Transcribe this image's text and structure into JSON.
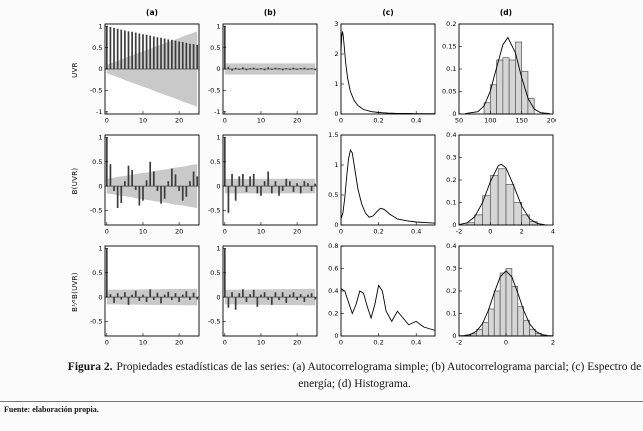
{
  "figure": {
    "column_headers": [
      "(a)",
      "(b)",
      "(c)",
      "(d)"
    ],
    "row_labels": [
      "UVR",
      "B(UVR)",
      "B¹⁄²B(UVR)"
    ],
    "caption": {
      "label": "Figura 2.",
      "text": "Propiedades estadísticas de las series: (a) Autocorrelograma simple; (b) Autocorrelograma parcial; (c) Espectro de energía; (d) Histograma."
    },
    "source": "Fuente: elaboración propia."
  },
  "colors": {
    "band": "#c9c9c9",
    "bar": "#3c3c3c",
    "hist_fill": "#d6d6d6",
    "hist_edge": "#555555",
    "line": "#000000",
    "plot_bg": "#ffffff"
  },
  "chart_data": [
    {
      "id": "uvr-acf",
      "row": 0,
      "col": 0,
      "type": "bars",
      "title": "(a) Autocorrelograma simple - UVR",
      "xlim": [
        -0.5,
        25.5
      ],
      "ylim": [
        -1.05,
        1.05
      ],
      "xticks": [
        0,
        10,
        20
      ],
      "yticks": [
        -1,
        -0.5,
        0,
        0.5,
        1
      ],
      "values": [
        1,
        0.98,
        0.96,
        0.94,
        0.92,
        0.9,
        0.88,
        0.87,
        0.85,
        0.83,
        0.81,
        0.8,
        0.78,
        0.76,
        0.74,
        0.73,
        0.71,
        0.69,
        0.68,
        0.66,
        0.64,
        0.63,
        0.61,
        0.59,
        0.58,
        0.56
      ],
      "band": {
        "x": [
          0,
          1,
          2,
          3,
          4,
          5,
          6,
          7,
          8,
          9,
          10,
          11,
          12,
          13,
          14,
          15,
          16,
          17,
          18,
          19,
          20,
          21,
          22,
          23,
          24,
          25
        ],
        "upper": [
          0.1,
          0.13,
          0.16,
          0.19,
          0.22,
          0.26,
          0.29,
          0.32,
          0.35,
          0.38,
          0.41,
          0.44,
          0.47,
          0.51,
          0.54,
          0.57,
          0.6,
          0.63,
          0.66,
          0.69,
          0.72,
          0.76,
          0.79,
          0.82,
          0.85,
          0.88
        ]
      }
    },
    {
      "id": "uvr-pacf",
      "row": 0,
      "col": 1,
      "type": "bars",
      "title": "(b) Autocorrelograma parcial - UVR",
      "xlim": [
        -0.5,
        25.5
      ],
      "ylim": [
        -1.05,
        1.05
      ],
      "xticks": [
        0,
        10,
        20
      ],
      "yticks": [
        -1,
        -0.5,
        0,
        0.5,
        1
      ],
      "values": [
        1,
        0.05,
        -0.04,
        0.03,
        -0.02,
        0.04,
        -0.03,
        0.02,
        0.03,
        -0.02,
        0.02,
        -0.03,
        0.04,
        -0.02,
        0.03,
        0.02,
        -0.03,
        0.02,
        -0.02,
        0.03,
        -0.02,
        0.02,
        0.03,
        -0.02,
        0.02,
        -0.03
      ],
      "band": {
        "x": [
          0,
          25
        ],
        "upper": [
          0.13,
          0.13
        ]
      }
    },
    {
      "id": "uvr-spectrum",
      "row": 0,
      "col": 2,
      "type": "line",
      "title": "(c) Espectro de energía - UVR",
      "xlim": [
        0,
        0.5
      ],
      "ylim": [
        0,
        3
      ],
      "xticks": [
        0,
        0.2,
        0.4
      ],
      "yticks": [
        0,
        1,
        2,
        3
      ],
      "x": [
        0,
        0.004,
        0.008,
        0.012,
        0.018,
        0.025,
        0.035,
        0.05,
        0.07,
        0.09,
        0.12,
        0.16,
        0.2,
        0.25,
        0.3,
        0.35,
        0.4,
        0.45,
        0.5
      ],
      "y": [
        2.1,
        2.6,
        2.75,
        2.6,
        2.2,
        1.7,
        1.2,
        0.75,
        0.45,
        0.28,
        0.15,
        0.08,
        0.05,
        0.03,
        0.02,
        0.02,
        0.01,
        0.01,
        0.01
      ]
    },
    {
      "id": "uvr-hist",
      "row": 0,
      "col": 3,
      "type": "hist",
      "title": "(d) Histograma - UVR",
      "xlim": [
        50,
        200
      ],
      "ylim": [
        0,
        0.2
      ],
      "xticks": [
        50,
        100,
        150,
        200
      ],
      "yticks": [
        0,
        0.05,
        0.1,
        0.15,
        0.2
      ],
      "bin_width": 10,
      "centers": [
        95,
        105,
        115,
        125,
        135,
        145,
        155,
        165
      ],
      "heights": [
        0.025,
        0.065,
        0.12,
        0.125,
        0.12,
        0.16,
        0.095,
        0.035
      ],
      "curve": {
        "x": [
          60,
          80,
          90,
          100,
          110,
          120,
          128,
          140,
          150,
          160,
          170,
          180,
          195
        ],
        "y": [
          0.001,
          0.005,
          0.018,
          0.051,
          0.103,
          0.154,
          0.17,
          0.136,
          0.081,
          0.035,
          0.011,
          0.003,
          0.001
        ]
      }
    },
    {
      "id": "buvr-acf",
      "row": 1,
      "col": 0,
      "type": "bars",
      "title": "(a) Autocorrelograma simple - B(UVR)",
      "xlim": [
        -0.5,
        25.5
      ],
      "ylim": [
        -0.8,
        1.05
      ],
      "xticks": [
        0,
        10,
        20
      ],
      "yticks": [
        -0.5,
        0,
        0.5,
        1
      ],
      "values": [
        1,
        0.45,
        -0.1,
        -0.45,
        -0.35,
        0.1,
        0.42,
        0.33,
        -0.08,
        -0.4,
        -0.3,
        0.12,
        0.5,
        0.3,
        -0.1,
        -0.36,
        -0.26,
        0.1,
        0.36,
        0.24,
        -0.1,
        -0.3,
        -0.22,
        0.1,
        0.3,
        0.2
      ],
      "band": {
        "x": [
          0,
          1,
          2,
          3,
          4,
          5,
          6,
          7,
          8,
          9,
          10,
          11,
          12,
          13,
          14,
          15,
          16,
          17,
          18,
          19,
          20,
          21,
          22,
          23,
          24,
          25
        ],
        "upper": [
          0.15,
          0.16,
          0.17,
          0.19,
          0.2,
          0.21,
          0.22,
          0.23,
          0.25,
          0.26,
          0.27,
          0.28,
          0.29,
          0.31,
          0.32,
          0.33,
          0.34,
          0.35,
          0.37,
          0.38,
          0.39,
          0.4,
          0.41,
          0.43,
          0.44,
          0.45
        ]
      }
    },
    {
      "id": "buvr-pacf",
      "row": 1,
      "col": 1,
      "type": "bars",
      "title": "(b) Autocorrelograma parcial - B(UVR)",
      "xlim": [
        -0.5,
        25.5
      ],
      "ylim": [
        -0.8,
        1.05
      ],
      "xticks": [
        0,
        10,
        20
      ],
      "yticks": [
        -0.5,
        0,
        0.5,
        1
      ],
      "values": [
        1,
        -0.55,
        0.25,
        -0.3,
        0.2,
        0.25,
        -0.12,
        0.2,
        0.25,
        -0.15,
        -0.2,
        0.1,
        0.3,
        -0.15,
        0.1,
        -0.2,
        -0.1,
        0.15,
        0.1,
        -0.12,
        0.06,
        -0.15,
        0.1,
        0.06,
        -0.1,
        0.05
      ],
      "band": {
        "x": [
          0,
          25
        ],
        "upper": [
          0.15,
          0.15
        ]
      }
    },
    {
      "id": "buvr-spectrum",
      "row": 1,
      "col": 2,
      "type": "line",
      "title": "(c) Espectro de energía - B(UVR)",
      "xlim": [
        0,
        0.5
      ],
      "ylim": [
        0,
        1.5
      ],
      "xticks": [
        0,
        0.2,
        0.4
      ],
      "yticks": [
        0,
        0.5,
        1,
        1.5
      ],
      "x": [
        0,
        0.01,
        0.02,
        0.03,
        0.04,
        0.05,
        0.06,
        0.07,
        0.09,
        0.11,
        0.13,
        0.15,
        0.17,
        0.19,
        0.21,
        0.23,
        0.26,
        0.3,
        0.35,
        0.4,
        0.45,
        0.5
      ],
      "y": [
        0.1,
        0.2,
        0.45,
        0.8,
        1.1,
        1.25,
        1.2,
        1.0,
        0.6,
        0.35,
        0.2,
        0.13,
        0.15,
        0.22,
        0.28,
        0.26,
        0.18,
        0.1,
        0.07,
        0.05,
        0.04,
        0.03
      ]
    },
    {
      "id": "buvr-hist",
      "row": 1,
      "col": 3,
      "type": "hist",
      "title": "(d) Histograma - B(UVR)",
      "xlim": [
        -2,
        4
      ],
      "ylim": [
        0,
        0.4
      ],
      "xticks": [
        -2,
        0,
        2,
        4
      ],
      "yticks": [
        0,
        0.1,
        0.2,
        0.3,
        0.4
      ],
      "bin_width": 0.5,
      "centers": [
        -1.25,
        -0.75,
        -0.25,
        0.25,
        0.75,
        1.25,
        1.75,
        2.25,
        2.75
      ],
      "heights": [
        0.01,
        0.045,
        0.13,
        0.22,
        0.25,
        0.18,
        0.1,
        0.045,
        0.015
      ],
      "curve": {
        "x": [
          -2,
          -1.5,
          -1,
          -0.5,
          0,
          0.5,
          0.7,
          1,
          1.5,
          2,
          2.5,
          3,
          3.5
        ],
        "y": [
          0.002,
          0.009,
          0.036,
          0.099,
          0.192,
          0.263,
          0.27,
          0.254,
          0.173,
          0.084,
          0.028,
          0.007,
          0.001
        ]
      }
    },
    {
      "id": "b12buvr-acf",
      "row": 2,
      "col": 0,
      "type": "bars",
      "title": "(a) Autocorrelograma simple - B1/2B(UVR)",
      "xlim": [
        -0.5,
        25.5
      ],
      "ylim": [
        -0.8,
        1.05
      ],
      "xticks": [
        0,
        10,
        20
      ],
      "yticks": [
        -0.5,
        0,
        0.5,
        1
      ],
      "values": [
        1,
        0.06,
        -0.12,
        0.08,
        -0.05,
        0.1,
        -0.16,
        0.05,
        0.13,
        -0.08,
        0.05,
        -0.1,
        0.16,
        -0.06,
        0.09,
        -0.13,
        0.05,
        0.11,
        -0.06,
        0.08,
        -0.1,
        0.05,
        0.12,
        -0.06,
        0.09,
        -0.05
      ],
      "band": {
        "x": [
          0,
          25
        ],
        "upper": [
          0.15,
          0.17
        ]
      }
    },
    {
      "id": "b12buvr-pacf",
      "row": 2,
      "col": 1,
      "type": "bars",
      "title": "(b) Autocorrelograma parcial - B1/2B(UVR)",
      "xlim": [
        -0.5,
        25.5
      ],
      "ylim": [
        -0.8,
        1.05
      ],
      "xticks": [
        0,
        10,
        20
      ],
      "yticks": [
        -0.5,
        0,
        0.5,
        1
      ],
      "values": [
        1,
        -0.22,
        0.1,
        -0.26,
        0.08,
        0.16,
        -0.1,
        0.06,
        0.15,
        -0.2,
        0.05,
        0.1,
        -0.06,
        -0.16,
        0.1,
        -0.06,
        0.1,
        -0.12,
        0.05,
        0.1,
        -0.06,
        0.06,
        -0.1,
        0.05,
        0.08,
        -0.05
      ],
      "band": {
        "x": [
          0,
          25
        ],
        "upper": [
          0.15,
          0.17
        ]
      }
    },
    {
      "id": "b12buvr-spectrum",
      "row": 2,
      "col": 2,
      "type": "line",
      "title": "(c) Espectro de energía - B1/2B(UVR)",
      "xlim": [
        0,
        0.5
      ],
      "ylim": [
        0,
        0.8
      ],
      "xticks": [
        0,
        0.2,
        0.4
      ],
      "yticks": [
        0,
        0.2,
        0.4,
        0.6,
        0.8
      ],
      "x": [
        0,
        0.02,
        0.04,
        0.06,
        0.08,
        0.1,
        0.12,
        0.14,
        0.16,
        0.18,
        0.2,
        0.22,
        0.24,
        0.27,
        0.3,
        0.33,
        0.36,
        0.4,
        0.44,
        0.48,
        0.5
      ],
      "y": [
        0.42,
        0.4,
        0.3,
        0.2,
        0.28,
        0.4,
        0.38,
        0.26,
        0.16,
        0.28,
        0.45,
        0.4,
        0.22,
        0.13,
        0.22,
        0.16,
        0.1,
        0.13,
        0.08,
        0.06,
        0.05
      ]
    },
    {
      "id": "b12buvr-hist",
      "row": 2,
      "col": 3,
      "type": "hist",
      "title": "(d) Histograma - B1/2B(UVR)",
      "xlim": [
        -2,
        2
      ],
      "ylim": [
        0,
        0.4
      ],
      "xticks": [
        -2,
        0,
        2
      ],
      "yticks": [
        0,
        0.1,
        0.2,
        0.3,
        0.4
      ],
      "bin_width": 0.25,
      "centers": [
        -1.625,
        -1.375,
        -1.125,
        -0.875,
        -0.625,
        -0.375,
        -0.125,
        0.125,
        0.375,
        0.625,
        0.875,
        1.125,
        1.375,
        1.625
      ],
      "heights": [
        0.004,
        0.01,
        0.03,
        0.06,
        0.12,
        0.2,
        0.28,
        0.3,
        0.22,
        0.13,
        0.07,
        0.03,
        0.012,
        0.004
      ],
      "curve": {
        "x": [
          -2,
          -1.75,
          -1.5,
          -1.25,
          -1,
          -0.75,
          -0.5,
          -0.25,
          0,
          0.25,
          0.5,
          0.75,
          1,
          1.25,
          1.5,
          1.75,
          2
        ],
        "y": [
          0.001,
          0.002,
          0.007,
          0.022,
          0.055,
          0.114,
          0.192,
          0.262,
          0.29,
          0.262,
          0.192,
          0.114,
          0.055,
          0.022,
          0.007,
          0.002,
          0.001
        ]
      }
    }
  ]
}
